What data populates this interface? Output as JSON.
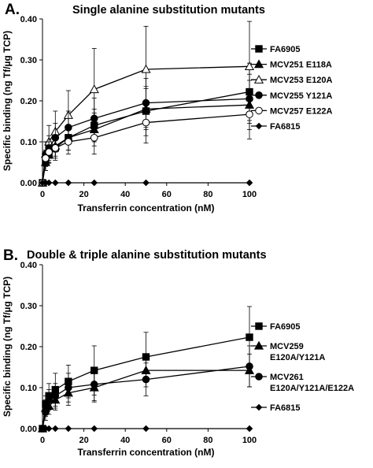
{
  "chart_data": [
    {
      "type": "line",
      "panel_label": "A.",
      "title": "Single alanine substitution mutants",
      "xlabel": "Transferrin concentration (nM)",
      "ylabel": "Specific binding (ng Tf/µg TCP)",
      "xlim": [
        0,
        100
      ],
      "ylim": [
        0,
        0.4
      ],
      "xticks": [
        "0",
        "20",
        "40",
        "60",
        "80",
        "100"
      ],
      "yticks": [
        "0.00",
        "0.10",
        "0.20",
        "0.30",
        "0.40"
      ],
      "grid": false,
      "legend_position": "right",
      "x": [
        0,
        1.5,
        3.1,
        6.2,
        12.5,
        25,
        50,
        100
      ],
      "series": [
        {
          "name": "FA6905",
          "marker": "square-filled",
          "color": "#000000",
          "values": [
            0,
            0.05,
            0.068,
            0.085,
            0.11,
            0.14,
            0.175,
            0.222
          ],
          "errors": [
            0,
            0.02,
            0.02,
            0.025,
            0.03,
            0.04,
            0.06,
            0.07
          ]
        },
        {
          "name": "MCV251 E118A",
          "marker": "triangle-filled",
          "color": "#000000",
          "values": [
            0,
            0.05,
            0.068,
            0.09,
            0.11,
            0.13,
            0.18,
            0.19
          ],
          "errors": [
            0,
            0.02,
            0.02,
            0.025,
            0.03,
            0.04,
            0.05,
            0.06
          ]
        },
        {
          "name": "MCV253 E120A",
          "marker": "triangle-open",
          "color": "#000000",
          "values": [
            0,
            0.07,
            0.1,
            0.125,
            0.165,
            0.228,
            0.277,
            0.284
          ],
          "errors": [
            0,
            0.03,
            0.04,
            0.05,
            0.06,
            0.1,
            0.105,
            0.11
          ]
        },
        {
          "name": "MCV255 Y121A",
          "marker": "circle-filled",
          "color": "#000000",
          "values": [
            0,
            0.07,
            0.085,
            0.11,
            0.135,
            0.157,
            0.195,
            0.205
          ],
          "errors": [
            0,
            0.03,
            0.03,
            0.035,
            0.04,
            0.05,
            0.06,
            0.06
          ]
        },
        {
          "name": "MCV257 E122A",
          "marker": "circle-open",
          "color": "#000000",
          "values": [
            0,
            0.06,
            0.075,
            0.085,
            0.1,
            0.11,
            0.147,
            0.167
          ],
          "errors": [
            0,
            0.02,
            0.025,
            0.03,
            0.03,
            0.04,
            0.05,
            0.06
          ]
        },
        {
          "name": "FA6815",
          "marker": "diamond-filled",
          "color": "#000000",
          "values": [
            0,
            0,
            0,
            0,
            0,
            0,
            0,
            0
          ],
          "errors": [
            0,
            0,
            0,
            0,
            0,
            0,
            0,
            0
          ]
        }
      ]
    },
    {
      "type": "line",
      "panel_label": "B.",
      "title": "Double & triple alanine substitution mutants",
      "xlabel": "Transferrin concentration (nM)",
      "ylabel": "Specific binding (ng Tf/µg TCP)",
      "xlim": [
        0,
        100
      ],
      "ylim": [
        0,
        0.4
      ],
      "xticks": [
        "0",
        "20",
        "40",
        "60",
        "80",
        "100"
      ],
      "yticks": [
        "0.00",
        "0.10",
        "0.20",
        "0.30",
        "0.40"
      ],
      "grid": false,
      "legend_position": "right",
      "x": [
        0,
        1.5,
        3.1,
        6.2,
        12.5,
        25,
        50,
        100
      ],
      "series": [
        {
          "name": "FA6905",
          "legend_lines": [
            "FA6905"
          ],
          "marker": "square-filled",
          "color": "#000000",
          "values": [
            0,
            0.06,
            0.08,
            0.095,
            0.115,
            0.142,
            0.175,
            0.223
          ],
          "errors": [
            0,
            0.02,
            0.03,
            0.04,
            0.04,
            0.06,
            0.06,
            0.075
          ]
        },
        {
          "name": "MCV259 E120A/Y121A",
          "legend_lines": [
            "MCV259",
            "E120A/Y121A"
          ],
          "marker": "triangle-filled",
          "color": "#000000",
          "values": [
            0,
            0.05,
            0.055,
            0.07,
            0.087,
            0.1,
            0.142,
            0.142
          ],
          "errors": [
            0,
            0.02,
            0.02,
            0.025,
            0.03,
            0.035,
            0.04,
            0.04
          ]
        },
        {
          "name": "MCV261 E120A/Y121A/E122A",
          "legend_lines": [
            "MCV261",
            "E120A/Y121A/E122A"
          ],
          "marker": "circle-filled",
          "color": "#000000",
          "values": [
            0,
            0.04,
            0.07,
            0.08,
            0.1,
            0.108,
            0.12,
            0.152
          ],
          "errors": [
            0,
            0.02,
            0.025,
            0.03,
            0.035,
            0.04,
            0.04,
            0.05
          ]
        },
        {
          "name": "FA6815",
          "legend_lines": [
            "FA6815"
          ],
          "marker": "diamond-filled",
          "color": "#000000",
          "values": [
            0,
            0,
            0,
            0,
            0,
            0,
            0,
            0
          ],
          "errors": [
            0,
            0,
            0,
            0,
            0,
            0,
            0,
            0
          ]
        }
      ]
    }
  ]
}
